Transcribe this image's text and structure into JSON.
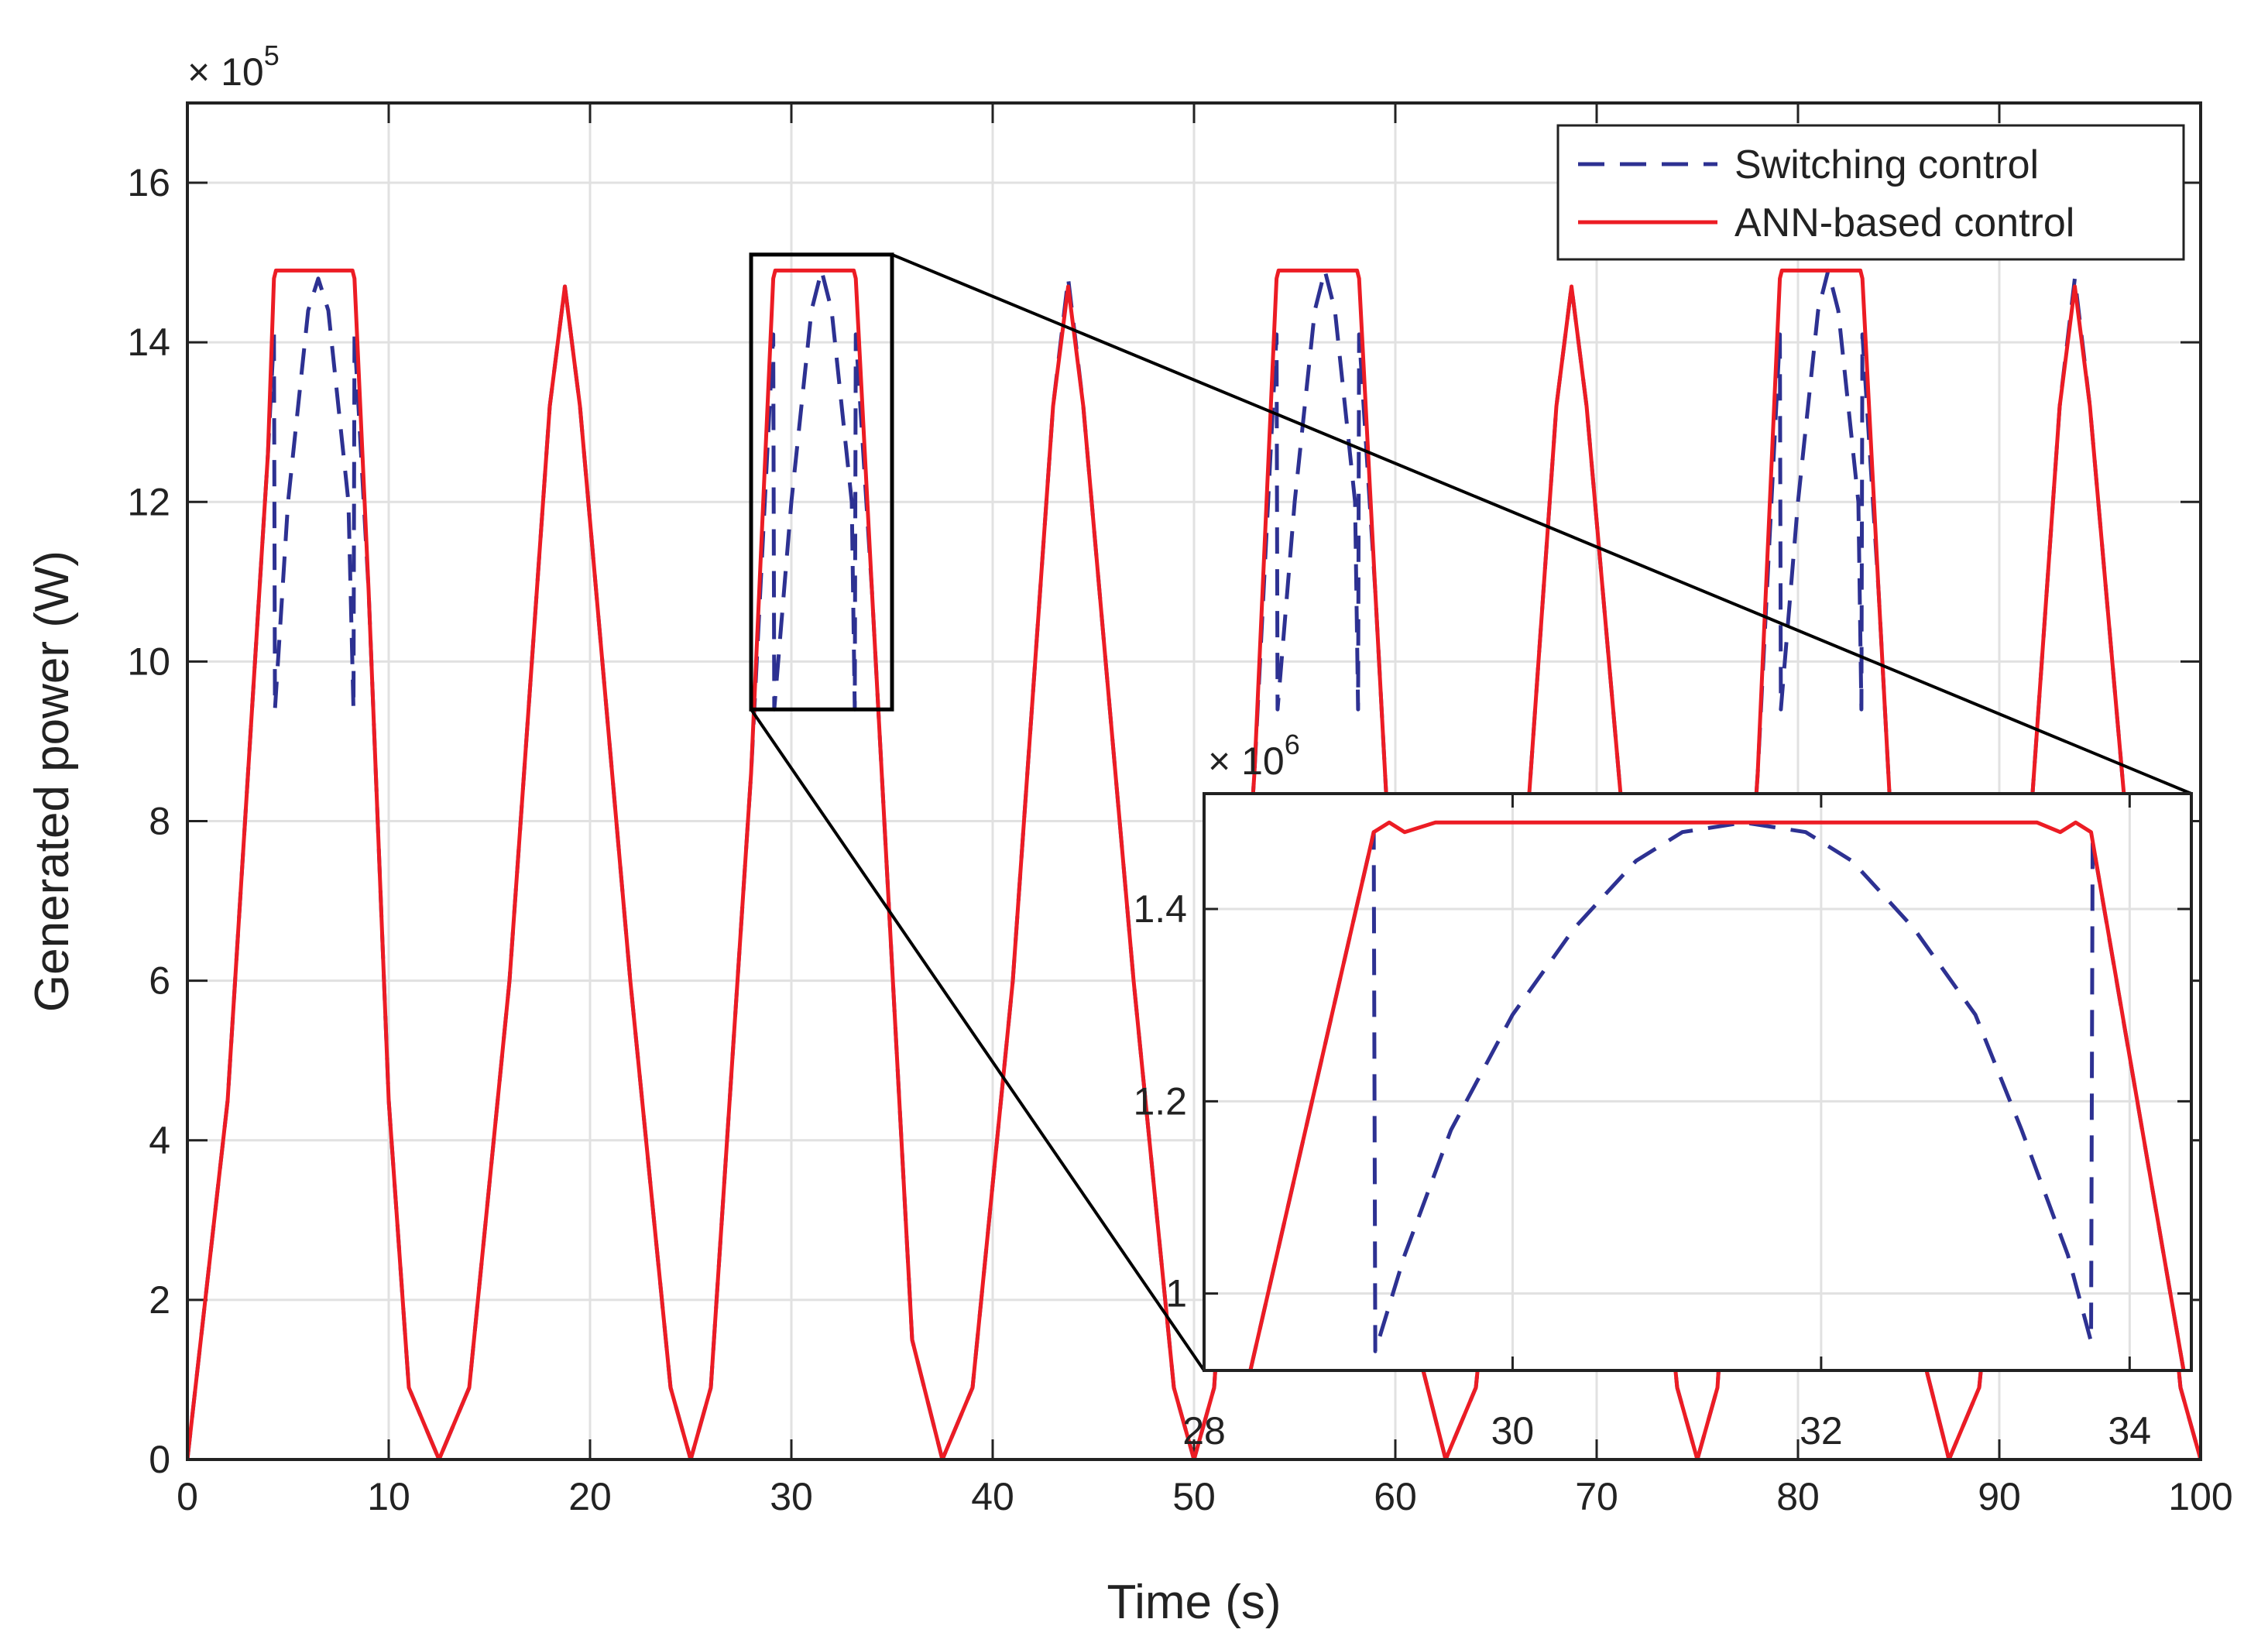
{
  "chart_data": [
    {
      "id": "main",
      "type": "line",
      "title": "",
      "xlabel": "Time (s)",
      "ylabel": "Generated power (W)",
      "y_multiplier_label": "× 10",
      "y_multiplier_exponent": "5",
      "xlim": [
        0,
        100
      ],
      "ylim": [
        0,
        17
      ],
      "grid": true,
      "x_ticks": [
        0,
        10,
        20,
        30,
        40,
        50,
        60,
        70,
        80,
        90,
        100
      ],
      "x_tick_labels": [
        "0",
        "10",
        "20",
        "30",
        "40",
        "50",
        "60",
        "70",
        "80",
        "90",
        "100"
      ],
      "y_ticks": [
        0,
        2,
        4,
        6,
        8,
        10,
        12,
        14,
        16
      ],
      "y_tick_labels": [
        "0",
        "2",
        "4",
        "6",
        "8",
        "10",
        "12",
        "14",
        "16"
      ],
      "legend": {
        "location": "top-right",
        "entries": [
          "Switching control",
          "ANN-based control"
        ]
      },
      "series": [
        {
          "name": "Switching control",
          "style": "dashed",
          "color": "#2d3192",
          "description": "Periodic humps (period ~12.5 s); every other hump saturates and falls back to ~9.4e5 when power exceeds the 1.5e6 limit",
          "points": [
            [
              0,
              0
            ],
            [
              2,
              4.5
            ],
            [
              4,
              12.6
            ],
            [
              4.3,
              14.1
            ],
            [
              4.35,
              9.4
            ],
            [
              5,
              12.0
            ],
            [
              6,
              14.4
            ],
            [
              6.5,
              14.8
            ],
            [
              7,
              14.4
            ],
            [
              8,
              12.0
            ],
            [
              8.25,
              9.4
            ],
            [
              8.3,
              14.1
            ],
            [
              9,
              10.9
            ],
            [
              10,
              4.5
            ],
            [
              11,
              0.9
            ],
            [
              12.5,
              0
            ],
            [
              14,
              0.9
            ],
            [
              16,
              6.0
            ],
            [
              18,
              13.2
            ],
            [
              18.75,
              14.7
            ],
            [
              19.5,
              13.2
            ],
            [
              22,
              6.0
            ],
            [
              24,
              0.9
            ],
            [
              25,
              0
            ],
            [
              26,
              0.9
            ],
            [
              28,
              8.6
            ],
            [
              29.1,
              14.1
            ],
            [
              29.15,
              9.4
            ],
            [
              30,
              12.0
            ],
            [
              31,
              14.4
            ],
            [
              31.5,
              14.9
            ],
            [
              32,
              14.4
            ],
            [
              33,
              12.0
            ],
            [
              33.15,
              9.4
            ],
            [
              33.2,
              14.1
            ],
            [
              34,
              10.9
            ],
            [
              36,
              1.5
            ],
            [
              37.5,
              0
            ],
            [
              39,
              0.9
            ],
            [
              41,
              6.0
            ],
            [
              43,
              13.2
            ],
            [
              43.75,
              14.8
            ],
            [
              44.5,
              13.2
            ],
            [
              47,
              6.0
            ],
            [
              49,
              0.9
            ],
            [
              50,
              0
            ],
            [
              51,
              0.9
            ],
            [
              53,
              8.6
            ],
            [
              54.1,
              14.1
            ],
            [
              54.15,
              9.4
            ],
            [
              55,
              12.0
            ],
            [
              56,
              14.4
            ],
            [
              56.5,
              14.9
            ],
            [
              57,
              14.4
            ],
            [
              58,
              12.0
            ],
            [
              58.15,
              9.4
            ],
            [
              58.2,
              14.1
            ],
            [
              59,
              10.9
            ],
            [
              61,
              1.5
            ],
            [
              62.5,
              0
            ],
            [
              64,
              0.9
            ],
            [
              66,
              6.0
            ],
            [
              68,
              13.2
            ],
            [
              68.75,
              14.7
            ],
            [
              69.5,
              13.2
            ],
            [
              72,
              6.0
            ],
            [
              74,
              0.9
            ],
            [
              75,
              0
            ],
            [
              76,
              0.9
            ],
            [
              78,
              8.6
            ],
            [
              79.1,
              14.1
            ],
            [
              79.15,
              9.4
            ],
            [
              80,
              12.0
            ],
            [
              81,
              14.4
            ],
            [
              81.5,
              14.9
            ],
            [
              82,
              14.4
            ],
            [
              83,
              12.0
            ],
            [
              83.15,
              9.4
            ],
            [
              83.2,
              14.1
            ],
            [
              84,
              10.9
            ],
            [
              86,
              1.5
            ],
            [
              87.5,
              0
            ],
            [
              89,
              0.9
            ],
            [
              91,
              6.0
            ],
            [
              93,
              13.2
            ],
            [
              93.75,
              14.8
            ],
            [
              94.5,
              13.2
            ],
            [
              97,
              6.0
            ],
            [
              99,
              0.9
            ],
            [
              100,
              0
            ]
          ]
        },
        {
          "name": "ANN-based control",
          "style": "solid",
          "color": "#ec1c24",
          "description": "Same humps but flat-topped at ~1.49e6 where the switching control dips",
          "points": [
            [
              0,
              0
            ],
            [
              2,
              4.5
            ],
            [
              4,
              12.6
            ],
            [
              4.3,
              14.8
            ],
            [
              4.4,
              14.9
            ],
            [
              8.2,
              14.9
            ],
            [
              8.3,
              14.8
            ],
            [
              9,
              10.9
            ],
            [
              10,
              4.5
            ],
            [
              11,
              0.9
            ],
            [
              12.5,
              0
            ],
            [
              14,
              0.9
            ],
            [
              16,
              6.0
            ],
            [
              18,
              13.2
            ],
            [
              18.75,
              14.7
            ],
            [
              19.5,
              13.2
            ],
            [
              22,
              6.0
            ],
            [
              24,
              0.9
            ],
            [
              25,
              0
            ],
            [
              26,
              0.9
            ],
            [
              28,
              8.6
            ],
            [
              29.1,
              14.8
            ],
            [
              29.2,
              14.9
            ],
            [
              33.1,
              14.9
            ],
            [
              33.2,
              14.8
            ],
            [
              34,
              10.9
            ],
            [
              36,
              1.5
            ],
            [
              37.5,
              0
            ],
            [
              39,
              0.9
            ],
            [
              41,
              6.0
            ],
            [
              43,
              13.2
            ],
            [
              43.75,
              14.7
            ],
            [
              44.5,
              13.2
            ],
            [
              47,
              6.0
            ],
            [
              49,
              0.9
            ],
            [
              50,
              0
            ],
            [
              51,
              0.9
            ],
            [
              53,
              8.6
            ],
            [
              54.1,
              14.8
            ],
            [
              54.2,
              14.9
            ],
            [
              58.1,
              14.9
            ],
            [
              58.2,
              14.8
            ],
            [
              59,
              10.9
            ],
            [
              61,
              1.5
            ],
            [
              62.5,
              0
            ],
            [
              64,
              0.9
            ],
            [
              66,
              6.0
            ],
            [
              68,
              13.2
            ],
            [
              68.75,
              14.7
            ],
            [
              69.5,
              13.2
            ],
            [
              72,
              6.0
            ],
            [
              74,
              0.9
            ],
            [
              75,
              0
            ],
            [
              76,
              0.9
            ],
            [
              78,
              8.6
            ],
            [
              79.1,
              14.8
            ],
            [
              79.2,
              14.9
            ],
            [
              83.1,
              14.9
            ],
            [
              83.2,
              14.8
            ],
            [
              84,
              10.9
            ],
            [
              86,
              1.5
            ],
            [
              87.5,
              0
            ],
            [
              89,
              0.9
            ],
            [
              91,
              6.0
            ],
            [
              93,
              13.2
            ],
            [
              93.75,
              14.7
            ],
            [
              94.5,
              13.2
            ],
            [
              97,
              6.0
            ],
            [
              99,
              0.9
            ],
            [
              100,
              0
            ]
          ]
        }
      ],
      "zoom_region": {
        "x": [
          28,
          35
        ],
        "y": [
          9.4,
          15.1
        ]
      }
    },
    {
      "id": "inset",
      "type": "line",
      "title": "",
      "xlabel": "",
      "ylabel": "",
      "y_multiplier_label": "× 10",
      "y_multiplier_exponent": "6",
      "xlim": [
        28,
        34.4
      ],
      "ylim": [
        0.92,
        1.52
      ],
      "grid": true,
      "x_ticks": [
        28,
        30,
        32,
        34
      ],
      "x_tick_labels": [
        "28",
        "30",
        "32",
        "34"
      ],
      "y_ticks": [
        1.0,
        1.2,
        1.4
      ],
      "y_tick_labels": [
        "1",
        "1.2",
        "1.4"
      ],
      "series": [
        {
          "name": "Switching control",
          "style": "dashed",
          "color": "#2d3192",
          "points": [
            [
              28.3,
              0.92
            ],
            [
              29.1,
              1.48
            ],
            [
              29.11,
              0.94
            ],
            [
              29.3,
              1.04
            ],
            [
              29.6,
              1.17
            ],
            [
              30,
              1.29
            ],
            [
              30.4,
              1.38
            ],
            [
              30.8,
              1.45
            ],
            [
              31.1,
              1.48
            ],
            [
              31.5,
              1.49
            ],
            [
              31.9,
              1.48
            ],
            [
              32.2,
              1.45
            ],
            [
              32.6,
              1.38
            ],
            [
              33,
              1.29
            ],
            [
              33.3,
              1.17
            ],
            [
              33.6,
              1.04
            ],
            [
              33.75,
              0.95
            ],
            [
              33.76,
              1.47
            ],
            [
              34.35,
              0.92
            ]
          ]
        },
        {
          "name": "ANN-based control",
          "style": "solid",
          "color": "#ec1c24",
          "points": [
            [
              28.3,
              0.92
            ],
            [
              29.1,
              1.48
            ],
            [
              29.2,
              1.49
            ],
            [
              29.3,
              1.48
            ],
            [
              29.5,
              1.49
            ],
            [
              33.1,
              1.49
            ],
            [
              33.4,
              1.49
            ],
            [
              33.55,
              1.48
            ],
            [
              33.65,
              1.49
            ],
            [
              33.75,
              1.48
            ],
            [
              34.35,
              0.92
            ]
          ]
        }
      ]
    }
  ]
}
